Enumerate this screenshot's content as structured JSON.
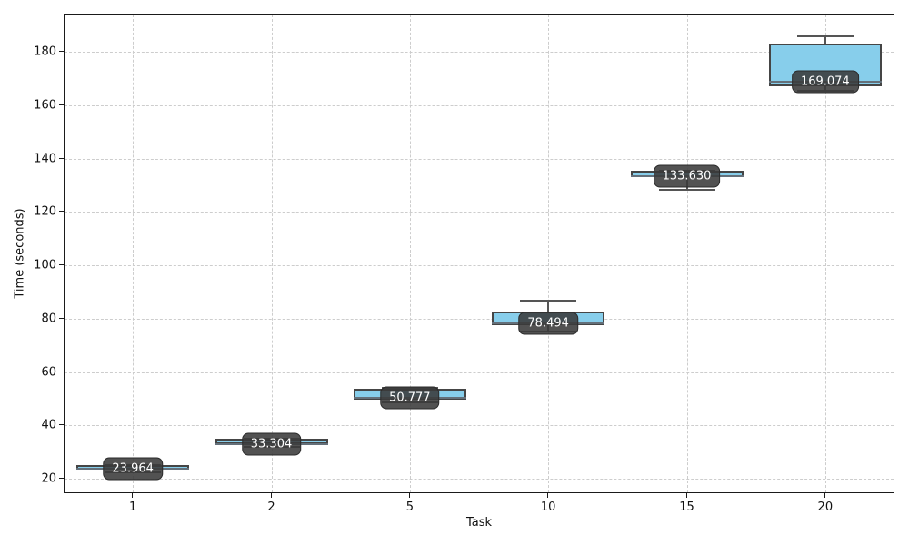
{
  "figure": {
    "background": "#ffffff"
  },
  "chart_data": {
    "type": "boxplot",
    "title": "",
    "xlabel": "Task",
    "ylabel": "Time (seconds)",
    "categories": [
      "1",
      "2",
      "5",
      "10",
      "15",
      "20"
    ],
    "y_ticks": [
      20,
      40,
      60,
      80,
      100,
      120,
      140,
      160,
      180
    ],
    "ylim": [
      14.6,
      194.3
    ],
    "xlim_positions": [
      0.5,
      6.5
    ],
    "grid": "dashed, both axes",
    "legend": "none",
    "series": [
      {
        "category": "1",
        "min": 22.9,
        "q1": 23.3,
        "median": 23.964,
        "q3": 25.0,
        "max": 25.4,
        "label": "23.964"
      },
      {
        "category": "2",
        "min": 32.3,
        "q1": 32.9,
        "median": 33.304,
        "q3": 34.9,
        "max": 35.3,
        "label": "33.304"
      },
      {
        "category": "5",
        "min": 49.0,
        "q1": 49.7,
        "median": 50.777,
        "q3": 53.6,
        "max": 54.3,
        "label": "50.777"
      },
      {
        "category": "10",
        "min": 75.5,
        "q1": 77.5,
        "median": 78.494,
        "q3": 82.6,
        "max": 87.0,
        "label": "78.494"
      },
      {
        "category": "15",
        "min": 128.6,
        "q1": 133.0,
        "median": 133.63,
        "q3": 135.5,
        "max": 135.8,
        "label": "133.630"
      },
      {
        "category": "20",
        "min": 165.8,
        "q1": 167.1,
        "median": 169.074,
        "q3": 183.0,
        "max": 186.1,
        "label": "169.074"
      }
    ],
    "colors": {
      "box_fill": "#87CEEB",
      "box_edge": "#454545",
      "median_line": "#64707a",
      "whisker": "#555555",
      "grid": "#cdcdcd",
      "spine": "#1a1a1a",
      "annotation_bg": "#3a3a3a",
      "annotation_text": "#ffffff"
    }
  }
}
